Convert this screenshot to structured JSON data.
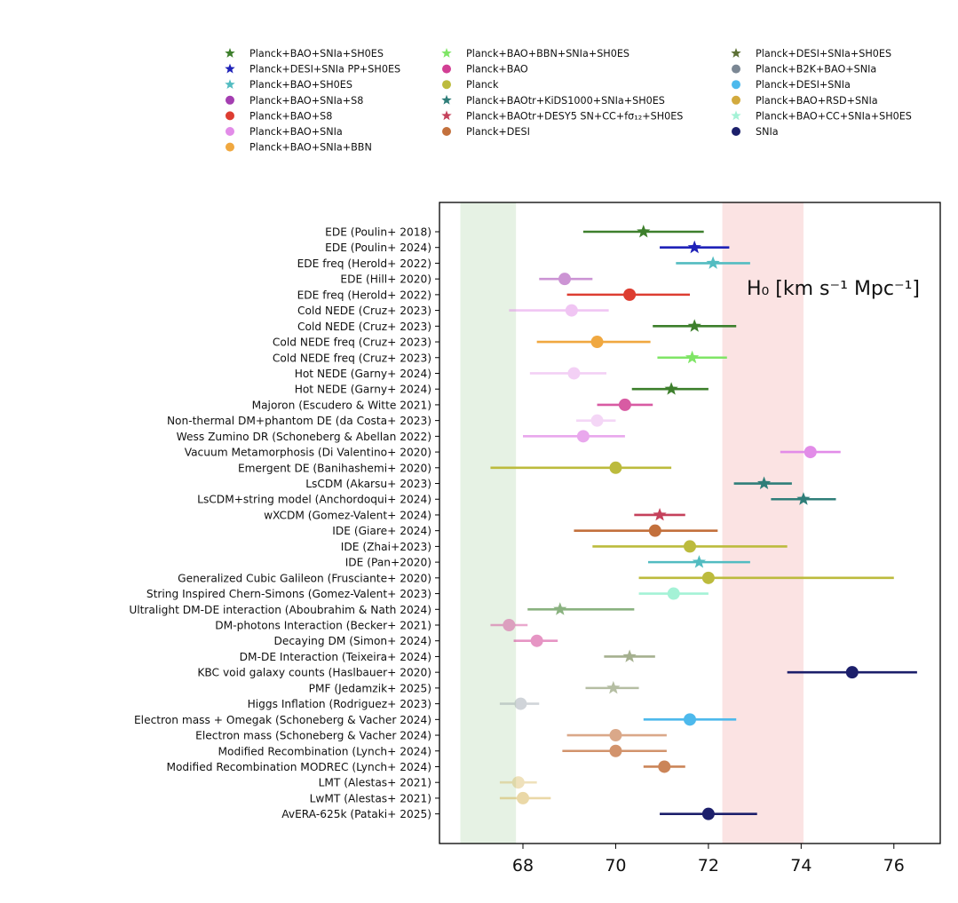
{
  "chart_data": {
    "type": "scatter",
    "title": "",
    "xlabel": "",
    "ylabel": "",
    "xlim": [
      66.2,
      77.0
    ],
    "xticks": [
      68,
      70,
      72,
      74,
      76
    ],
    "grid": false,
    "legend_placement": "top",
    "annotation": {
      "text": "H₀ [km s⁻¹ Mpc⁻¹]"
    },
    "bands": [
      {
        "x0": 66.65,
        "x1": 67.85,
        "color": "#e6f2e4"
      },
      {
        "x0": 72.3,
        "x1": 74.05,
        "color": "#fbe3e3"
      }
    ],
    "legend": [
      {
        "label": "Planck+BAO+SNIa+SH0ES",
        "marker": "star",
        "color": "#3d7f2c"
      },
      {
        "label": "Planck+DESI+SNIa PP+SH0ES",
        "marker": "star",
        "color": "#1f22b8"
      },
      {
        "label": "Planck+BAO+SH0ES",
        "marker": "star",
        "color": "#52bcc1"
      },
      {
        "label": "Planck+BAO+SNIa+S8",
        "marker": "circle",
        "color": "#a43eb1"
      },
      {
        "label": "Planck+BAO+S8",
        "marker": "circle",
        "color": "#dd3d31"
      },
      {
        "label": "Planck+BAO+SNIa",
        "marker": "circle",
        "color": "#e28ce8"
      },
      {
        "label": "Planck+BAO+SNIa+BBN",
        "marker": "circle",
        "color": "#f0a840"
      },
      {
        "label": "Planck+BAO+BBN+SNIa+SH0ES",
        "marker": "star",
        "color": "#7fe566"
      },
      {
        "label": "Planck+BAO",
        "marker": "circle",
        "color": "#d23f94"
      },
      {
        "label": "Planck",
        "marker": "circle",
        "color": "#bcbb3d"
      },
      {
        "label": "Planck+BAOtr+KiDS1000+SNIa+SH0ES",
        "marker": "star",
        "color": "#2f7e79"
      },
      {
        "label": "Planck+BAOtr+DESY5 SN+CC+fσ₁₂+SH0ES",
        "marker": "star",
        "color": "#c5415b"
      },
      {
        "label": "Planck+DESI",
        "marker": "circle",
        "color": "#c3703c"
      },
      {
        "label": "Planck+DESI+SNIa+SH0ES",
        "marker": "star",
        "color": "#5c7035"
      },
      {
        "label": "Planck+B2K+BAO+SNIa",
        "marker": "circle",
        "color": "#7b8794"
      },
      {
        "label": "Planck+DESI+SNIa",
        "marker": "circle",
        "color": "#4db9ec"
      },
      {
        "label": "Planck+BAO+RSD+SNIa",
        "marker": "circle",
        "color": "#d2aa3e"
      },
      {
        "label": "Planck+BAO+CC+SNIa+SH0ES",
        "marker": "star",
        "color": "#a4f2d6"
      },
      {
        "label": "SNIa",
        "marker": "circle",
        "color": "#1c1f6b"
      }
    ],
    "points": [
      {
        "label": "EDE (Poulin+ 2018)",
        "x": 70.6,
        "lo": 69.3,
        "hi": 71.9,
        "marker": "star",
        "color": "#3d7f2c",
        "alpha": 1.0
      },
      {
        "label": "EDE (Poulin+ 2024)",
        "x": 71.7,
        "lo": 70.95,
        "hi": 72.45,
        "marker": "star",
        "color": "#1f22b8",
        "alpha": 1.0
      },
      {
        "label": "EDE freq (Herold+ 2022)",
        "x": 72.1,
        "lo": 71.3,
        "hi": 72.9,
        "marker": "star",
        "color": "#52bcc1",
        "alpha": 1.0
      },
      {
        "label": "EDE (Hill+ 2020)",
        "x": 68.9,
        "lo": 68.35,
        "hi": 69.5,
        "marker": "circle",
        "color": "#a43eb1",
        "alpha": 0.55
      },
      {
        "label": "EDE freq (Herold+ 2022)",
        "x": 70.3,
        "lo": 68.95,
        "hi": 71.6,
        "marker": "circle",
        "color": "#dd3d31",
        "alpha": 1.0
      },
      {
        "label": "Cold NEDE (Cruz+ 2023)",
        "x": 69.05,
        "lo": 67.7,
        "hi": 69.85,
        "marker": "circle",
        "color": "#e28ce8",
        "alpha": 0.5
      },
      {
        "label": "Cold NEDE (Cruz+ 2023)",
        "x": 71.7,
        "lo": 70.8,
        "hi": 72.6,
        "marker": "star",
        "color": "#3d7f2c",
        "alpha": 1.0
      },
      {
        "label": "Cold NEDE freq (Cruz+ 2023)",
        "x": 69.6,
        "lo": 68.3,
        "hi": 70.75,
        "marker": "circle",
        "color": "#f0a840",
        "alpha": 1.0
      },
      {
        "label": "Cold NEDE freq (Cruz+ 2023)",
        "x": 71.65,
        "lo": 70.9,
        "hi": 72.4,
        "marker": "star",
        "color": "#7fe566",
        "alpha": 1.0
      },
      {
        "label": "Hot NEDE (Garny+ 2024)",
        "x": 69.1,
        "lo": 68.15,
        "hi": 69.8,
        "marker": "circle",
        "color": "#e28ce8",
        "alpha": 0.4
      },
      {
        "label": "Hot NEDE (Garny+ 2024)",
        "x": 71.2,
        "lo": 70.35,
        "hi": 72.0,
        "marker": "star",
        "color": "#3d7f2c",
        "alpha": 1.0
      },
      {
        "label": "Majoron (Escudero & Witte 2021)",
        "x": 70.2,
        "lo": 69.6,
        "hi": 70.8,
        "marker": "circle",
        "color": "#d23f94",
        "alpha": 0.85
      },
      {
        "label": "Non-thermal DM+phantom DE (da Costa+ 2023)",
        "x": 69.6,
        "lo": 69.15,
        "hi": 70.0,
        "marker": "circle",
        "color": "#e28ce8",
        "alpha": 0.35
      },
      {
        "label": "Wess Zumino DR (Schoneberg & Abellan 2022)",
        "x": 69.3,
        "lo": 68.0,
        "hi": 70.2,
        "marker": "circle",
        "color": "#e28ce8",
        "alpha": 0.75
      },
      {
        "label": "Vacuum Metamorphosis (Di Valentino+ 2020)",
        "x": 74.2,
        "lo": 73.55,
        "hi": 74.85,
        "marker": "circle",
        "color": "#e28ce8",
        "alpha": 1.0
      },
      {
        "label": "Emergent DE (Banihashemi+ 2020)",
        "x": 70.0,
        "lo": 67.3,
        "hi": 71.2,
        "marker": "circle",
        "color": "#bcbb3d",
        "alpha": 1.0
      },
      {
        "label": "LsCDM (Akarsu+ 2023)",
        "x": 73.2,
        "lo": 72.55,
        "hi": 73.8,
        "marker": "star",
        "color": "#2f7e79",
        "alpha": 1.0
      },
      {
        "label": "LsCDM+string model (Anchordoqui+ 2024)",
        "x": 74.05,
        "lo": 73.35,
        "hi": 74.75,
        "marker": "star",
        "color": "#2f7e79",
        "alpha": 1.0
      },
      {
        "label": "wXCDM (Gomez-Valent+ 2024)",
        "x": 70.95,
        "lo": 70.4,
        "hi": 71.5,
        "marker": "star",
        "color": "#c5415b",
        "alpha": 1.0
      },
      {
        "label": "IDE (Giare+ 2024)",
        "x": 70.85,
        "lo": 69.1,
        "hi": 72.2,
        "marker": "circle",
        "color": "#c3703c",
        "alpha": 1.0
      },
      {
        "label": "IDE (Zhai+2023)",
        "x": 71.6,
        "lo": 69.5,
        "hi": 73.7,
        "marker": "circle",
        "color": "#bcbb3d",
        "alpha": 1.0
      },
      {
        "label": "IDE (Pan+2020)",
        "x": 71.8,
        "lo": 70.7,
        "hi": 72.9,
        "marker": "star",
        "color": "#52bcc1",
        "alpha": 1.0
      },
      {
        "label": "Generalized Cubic Galileon (Frusciante+ 2020)",
        "x": 72.0,
        "lo": 70.5,
        "hi": 76.0,
        "marker": "circle",
        "color": "#bcbb3d",
        "alpha": 1.0
      },
      {
        "label": "String Inspired Chern-Simons (Gomez-Valent+ 2023)",
        "x": 71.25,
        "lo": 70.5,
        "hi": 72.0,
        "marker": "circle",
        "color": "#a4f2d6",
        "alpha": 1.0
      },
      {
        "label": "Ultralight DM-DE interaction (Aboubrahim & Nath 2024)",
        "x": 68.8,
        "lo": 68.1,
        "hi": 70.4,
        "marker": "star",
        "color": "#3d7f2c",
        "alpha": 0.6
      },
      {
        "label": "DM-photons Interaction (Becker+ 2021)",
        "x": 67.7,
        "lo": 67.3,
        "hi": 68.1,
        "marker": "circle",
        "color": "#d23f94",
        "alpha": 0.45
      },
      {
        "label": "Decaying DM (Simon+ 2024)",
        "x": 68.3,
        "lo": 67.8,
        "hi": 68.75,
        "marker": "circle",
        "color": "#d23f94",
        "alpha": 0.55
      },
      {
        "label": "DM-DE Interaction (Teixeira+ 2024)",
        "x": 70.3,
        "lo": 69.75,
        "hi": 70.85,
        "marker": "star",
        "color": "#5c7035",
        "alpha": 0.55
      },
      {
        "label": "KBC void galaxy counts (Haslbauer+ 2020)",
        "x": 75.1,
        "lo": 73.7,
        "hi": 76.5,
        "marker": "circle",
        "color": "#1c1f6b",
        "alpha": 1.0
      },
      {
        "label": "PMF (Jedamzik+ 2025)",
        "x": 69.95,
        "lo": 69.35,
        "hi": 70.5,
        "marker": "star",
        "color": "#5c7035",
        "alpha": 0.45
      },
      {
        "label": "Higgs Inflation (Rodriguez+ 2023)",
        "x": 67.95,
        "lo": 67.5,
        "hi": 68.35,
        "marker": "circle",
        "color": "#7b8794",
        "alpha": 0.35
      },
      {
        "label": "Electron mass + Omegak (Schoneberg & Vacher 2024)",
        "x": 71.6,
        "lo": 70.6,
        "hi": 72.6,
        "marker": "circle",
        "color": "#4db9ec",
        "alpha": 1.0
      },
      {
        "label": "Electron mass (Schoneberg & Vacher 2024)",
        "x": 70.0,
        "lo": 68.95,
        "hi": 71.1,
        "marker": "circle",
        "color": "#c3703c",
        "alpha": 0.6
      },
      {
        "label": "Modified Recombination (Lynch+ 2024)",
        "x": 70.0,
        "lo": 68.85,
        "hi": 71.1,
        "marker": "circle",
        "color": "#c3703c",
        "alpha": 0.75
      },
      {
        "label": "Modified Recombination MODREC (Lynch+ 2024)",
        "x": 71.05,
        "lo": 70.6,
        "hi": 71.5,
        "marker": "circle",
        "color": "#c3703c",
        "alpha": 0.85
      },
      {
        "label": "LMT (Alestas+ 2021)",
        "x": 67.9,
        "lo": 67.5,
        "hi": 68.3,
        "marker": "circle",
        "color": "#d2aa3e",
        "alpha": 0.35
      },
      {
        "label": "LwMT (Alestas+ 2021)",
        "x": 68.0,
        "lo": 67.5,
        "hi": 68.6,
        "marker": "circle",
        "color": "#d2aa3e",
        "alpha": 0.45
      },
      {
        "label": "AvERA-625k (Pataki+ 2025)",
        "x": 72.0,
        "lo": 70.95,
        "hi": 73.05,
        "marker": "circle",
        "color": "#1c1f6b",
        "alpha": 1.0
      }
    ]
  }
}
